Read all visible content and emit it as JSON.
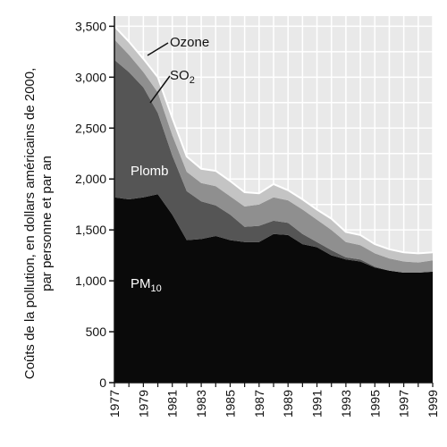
{
  "chart_data": {
    "type": "area",
    "stacked": true,
    "ylabel_line1": "Coûts de la pollution, en dollars américains de 2000,",
    "ylabel_line2": "par personne et par an",
    "xlabel": "",
    "xlim": [
      1977,
      1999
    ],
    "ylim": [
      0,
      3600
    ],
    "x_ticks": [
      1977,
      1979,
      1981,
      1983,
      1985,
      1987,
      1989,
      1991,
      1993,
      1995,
      1997,
      1999
    ],
    "y_ticks": [
      0,
      500,
      1000,
      1500,
      2000,
      2500,
      3000,
      3500
    ],
    "y_tick_labels": [
      "0",
      "500",
      "1,000",
      "1,500",
      "2,000",
      "2,500",
      "3,000",
      "3,500"
    ],
    "grid": true,
    "x": [
      1977,
      1978,
      1979,
      1980,
      1981,
      1982,
      1983,
      1984,
      1985,
      1986,
      1987,
      1988,
      1989,
      1990,
      1991,
      1992,
      1993,
      1994,
      1995,
      1996,
      1997,
      1998,
      1999
    ],
    "series": [
      {
        "name": "PM",
        "name_sub": "10",
        "color": "#0a0a0a",
        "label_color": "#ffffff",
        "values": [
          1820,
          1800,
          1820,
          1850,
          1650,
          1400,
          1410,
          1440,
          1400,
          1380,
          1380,
          1460,
          1450,
          1360,
          1330,
          1250,
          1210,
          1190,
          1130,
          1100,
          1080,
          1080,
          1090
        ]
      },
      {
        "name": "Plomb",
        "name_sub": "",
        "color": "#555555",
        "label_color": "#ffffff",
        "values": [
          1350,
          1250,
          1080,
          800,
          580,
          480,
          370,
          300,
          250,
          150,
          160,
          130,
          120,
          100,
          50,
          50,
          20,
          20,
          10,
          0,
          0,
          0,
          0
        ]
      },
      {
        "name": "SO",
        "name_sub": "2",
        "color": "#8f8f8f",
        "label_color": "#111111",
        "values": [
          200,
          170,
          150,
          200,
          200,
          190,
          180,
          190,
          180,
          200,
          210,
          230,
          220,
          240,
          220,
          200,
          150,
          140,
          130,
          120,
          110,
          100,
          110
        ]
      },
      {
        "name": "Ozone",
        "name_sub": "",
        "color": "#c4c4c4",
        "label_color": "#111111",
        "values": [
          130,
          130,
          130,
          150,
          170,
          150,
          140,
          150,
          150,
          140,
          110,
          130,
          100,
          100,
          100,
          110,
          100,
          100,
          90,
          90,
          90,
          90,
          80
        ]
      }
    ],
    "colors": {
      "background_fill": "#e9e9e9",
      "grid_line": "#ffffff"
    }
  }
}
